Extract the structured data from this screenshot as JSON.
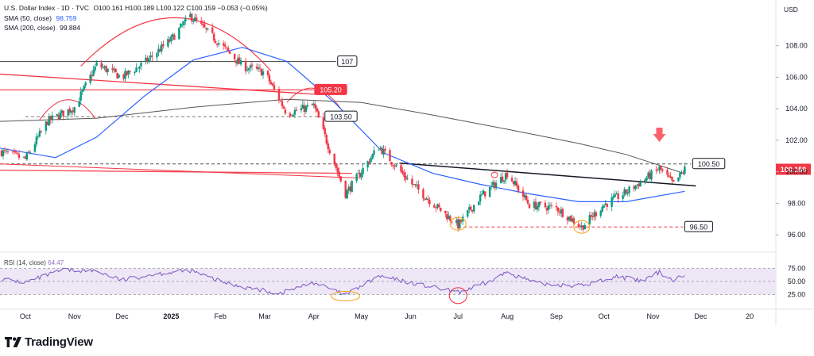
{
  "header": {
    "symbol_line": "U.S. Dollar Index · 1D · TVC",
    "ohlc": "O100.161 H100.189 L100.122 C100.159 −0.053 (−0.05%)",
    "sma50_label": "SMA (50, close)",
    "sma50_value": "98.759",
    "sma200_label": "SMA (200, close)",
    "sma200_value": "99.884",
    "currency": "USD"
  },
  "rsi_panel": {
    "label": "RSI (14, close)",
    "value": "64.47",
    "ticks": [
      "75.00",
      "50.00",
      "25.00"
    ]
  },
  "brand": {
    "name": "TradingView"
  },
  "colors": {
    "up": "#089981",
    "down": "#f23645",
    "sma50": "#2962ff",
    "sma200": "#555555",
    "rsi": "#7e57c2",
    "rsi_band": "#ede7f6",
    "price_badge": "#f23645"
  },
  "chart_data": {
    "type": "candlestick",
    "title": "U.S. Dollar Index · 1D · TVC",
    "ylabel": "USD",
    "ylim": [
      95.0,
      110.5
    ],
    "y_ticks": [
      96,
      98,
      100,
      102,
      104,
      106,
      108
    ],
    "x_ticks": [
      "Oct",
      "Nov",
      "Dec",
      "2025",
      "Feb",
      "Mar",
      "Apr",
      "May",
      "Jun",
      "Jul",
      "Aug",
      "Sep",
      "Oct",
      "Nov",
      "Dec",
      "20"
    ],
    "last_price": "100.159",
    "price_path": [
      {
        "t": "2024-09-15",
        "close": 101.3
      },
      {
        "t": "2024-10-01",
        "close": 100.8
      },
      {
        "t": "2024-10-15",
        "close": 103.2
      },
      {
        "t": "2024-11-01",
        "close": 104.1
      },
      {
        "t": "2024-11-15",
        "close": 106.8
      },
      {
        "t": "2024-12-01",
        "close": 106.0
      },
      {
        "t": "2024-12-15",
        "close": 106.9
      },
      {
        "t": "2025-01-01",
        "close": 108.4
      },
      {
        "t": "2025-01-13",
        "close": 109.9
      },
      {
        "t": "2025-02-01",
        "close": 108.1
      },
      {
        "t": "2025-02-15",
        "close": 106.7
      },
      {
        "t": "2025-03-01",
        "close": 106.3
      },
      {
        "t": "2025-03-15",
        "close": 103.7
      },
      {
        "t": "2025-04-01",
        "close": 104.2
      },
      {
        "t": "2025-04-21",
        "close": 98.6
      },
      {
        "t": "2025-05-12",
        "close": 101.6
      },
      {
        "t": "2025-06-01",
        "close": 99.3
      },
      {
        "t": "2025-06-15",
        "close": 98.0
      },
      {
        "t": "2025-07-01",
        "close": 96.6
      },
      {
        "t": "2025-07-15",
        "close": 98.4
      },
      {
        "t": "2025-08-01",
        "close": 99.9
      },
      {
        "t": "2025-08-15",
        "close": 97.9
      },
      {
        "t": "2025-09-01",
        "close": 97.7
      },
      {
        "t": "2025-09-17",
        "close": 96.5
      },
      {
        "t": "2025-10-01",
        "close": 97.9
      },
      {
        "t": "2025-10-15",
        "close": 98.7
      },
      {
        "t": "2025-11-01",
        "close": 99.9
      },
      {
        "t": "2025-11-05",
        "close": 100.2
      },
      {
        "t": "2025-11-14",
        "close": 99.2
      },
      {
        "t": "2025-11-21",
        "close": 100.16
      }
    ],
    "sma50": [
      {
        "t": "2024-09-15",
        "v": 101.5
      },
      {
        "t": "2024-10-20",
        "v": 100.9
      },
      {
        "t": "2024-11-15",
        "v": 102.2
      },
      {
        "t": "2024-12-15",
        "v": 104.8
      },
      {
        "t": "2025-01-15",
        "v": 107.1
      },
      {
        "t": "2025-02-15",
        "v": 107.9
      },
      {
        "t": "2025-03-15",
        "v": 107.0
      },
      {
        "t": "2025-04-15",
        "v": 104.3
      },
      {
        "t": "2025-05-15",
        "v": 101.2
      },
      {
        "t": "2025-06-15",
        "v": 99.9
      },
      {
        "t": "2025-07-15",
        "v": 99.2
      },
      {
        "t": "2025-08-15",
        "v": 98.6
      },
      {
        "t": "2025-09-15",
        "v": 98.1
      },
      {
        "t": "2025-10-15",
        "v": 98.1
      },
      {
        "t": "2025-11-21",
        "v": 98.76
      }
    ],
    "sma200": [
      {
        "t": "2024-09-15",
        "v": 103.2
      },
      {
        "t": "2024-11-15",
        "v": 103.4
      },
      {
        "t": "2025-01-15",
        "v": 104.1
      },
      {
        "t": "2025-03-15",
        "v": 104.6
      },
      {
        "t": "2025-05-01",
        "v": 104.4
      },
      {
        "t": "2025-06-15",
        "v": 103.6
      },
      {
        "t": "2025-08-01",
        "v": 102.7
      },
      {
        "t": "2025-09-15",
        "v": 101.8
      },
      {
        "t": "2025-10-15",
        "v": 101.1
      },
      {
        "t": "2025-11-21",
        "v": 99.88
      }
    ],
    "levels": [
      {
        "label": "107",
        "value": 107.0,
        "style": "solid",
        "color": "#555555"
      },
      {
        "label": "105.20",
        "value": 105.2,
        "style": "solid",
        "color": "#f23645"
      },
      {
        "label": "103.50",
        "value": 103.5,
        "style": "dashed",
        "color": "#777777"
      },
      {
        "label": "100.50",
        "value": 100.5,
        "style": "dashed",
        "color": "#555555"
      },
      {
        "label": "96.50",
        "value": 96.5,
        "style": "dashed",
        "color": "#f23645"
      }
    ],
    "rsi": [
      {
        "t": "2024-09-15",
        "v": 55
      },
      {
        "t": "2024-10-01",
        "v": 48
      },
      {
        "t": "2024-10-25",
        "v": 72
      },
      {
        "t": "2024-11-15",
        "v": 70
      },
      {
        "t": "2024-12-01",
        "v": 52
      },
      {
        "t": "2024-12-20",
        "v": 64
      },
      {
        "t": "2025-01-13",
        "v": 71
      },
      {
        "t": "2025-02-01",
        "v": 50
      },
      {
        "t": "2025-02-15",
        "v": 40
      },
      {
        "t": "2025-03-10",
        "v": 27
      },
      {
        "t": "2025-04-01",
        "v": 48
      },
      {
        "t": "2025-04-21",
        "v": 24
      },
      {
        "t": "2025-05-12",
        "v": 60
      },
      {
        "t": "2025-06-10",
        "v": 42
      },
      {
        "t": "2025-07-01",
        "v": 29
      },
      {
        "t": "2025-07-20",
        "v": 48
      },
      {
        "t": "2025-08-01",
        "v": 68
      },
      {
        "t": "2025-08-20",
        "v": 46
      },
      {
        "t": "2025-09-17",
        "v": 42
      },
      {
        "t": "2025-10-10",
        "v": 60
      },
      {
        "t": "2025-10-25",
        "v": 50
      },
      {
        "t": "2025-11-05",
        "v": 68
      },
      {
        "t": "2025-11-14",
        "v": 52
      },
      {
        "t": "2025-11-21",
        "v": 64.47
      }
    ],
    "rsi_levels": [
      75,
      50,
      25
    ]
  }
}
